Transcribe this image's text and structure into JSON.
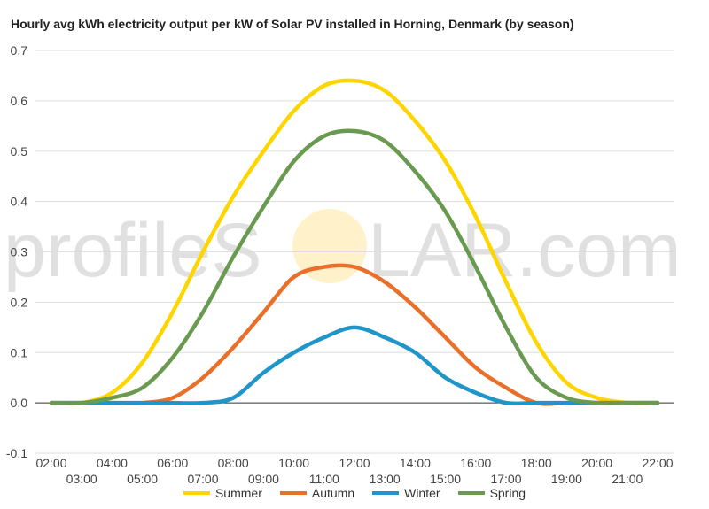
{
  "chart_data": {
    "type": "line",
    "title": "Hourly avg kWh electricity output per kW of Solar PV installed in Horning, Denmark (by season)",
    "xlabel": "",
    "ylabel": "",
    "x": [
      "02:00",
      "03:00",
      "04:00",
      "05:00",
      "06:00",
      "07:00",
      "08:00",
      "09:00",
      "10:00",
      "11:00",
      "12:00",
      "13:00",
      "14:00",
      "15:00",
      "16:00",
      "17:00",
      "18:00",
      "19:00",
      "20:00",
      "21:00",
      "22:00"
    ],
    "ylim": [
      -0.1,
      0.7
    ],
    "yticks": [
      "0.7",
      "0.6",
      "0.5",
      "0.4",
      "0.3",
      "0.2",
      "0.1",
      "0.0",
      "-0.1"
    ],
    "grid": true,
    "legend_position": "bottom",
    "series": [
      {
        "name": "Summer",
        "color": "#ffd500",
        "values": [
          0,
          0,
          0.02,
          0.08,
          0.18,
          0.3,
          0.41,
          0.5,
          0.58,
          0.63,
          0.64,
          0.62,
          0.56,
          0.48,
          0.37,
          0.24,
          0.12,
          0.04,
          0.01,
          0,
          0
        ]
      },
      {
        "name": "Autumn",
        "color": "#e8702a",
        "values": [
          0,
          0,
          0,
          0,
          0.01,
          0.05,
          0.11,
          0.18,
          0.25,
          0.27,
          0.27,
          0.24,
          0.19,
          0.13,
          0.07,
          0.03,
          0,
          0,
          0,
          0,
          0
        ]
      },
      {
        "name": "Winter",
        "color": "#1f95c9",
        "values": [
          0,
          0,
          0,
          0,
          0,
          0,
          0.01,
          0.06,
          0.1,
          0.13,
          0.15,
          0.13,
          0.1,
          0.05,
          0.02,
          0,
          0,
          0,
          0,
          0,
          0
        ]
      },
      {
        "name": "Spring",
        "color": "#6a9a4f",
        "values": [
          0,
          0,
          0.01,
          0.03,
          0.09,
          0.18,
          0.29,
          0.39,
          0.48,
          0.53,
          0.54,
          0.52,
          0.46,
          0.38,
          0.27,
          0.15,
          0.05,
          0.01,
          0,
          0,
          0
        ]
      }
    ]
  },
  "watermark": {
    "text_left": "profileS",
    "text_right": "LAR.com",
    "color": "#cccccc",
    "sun_color": "#fff0c0"
  }
}
